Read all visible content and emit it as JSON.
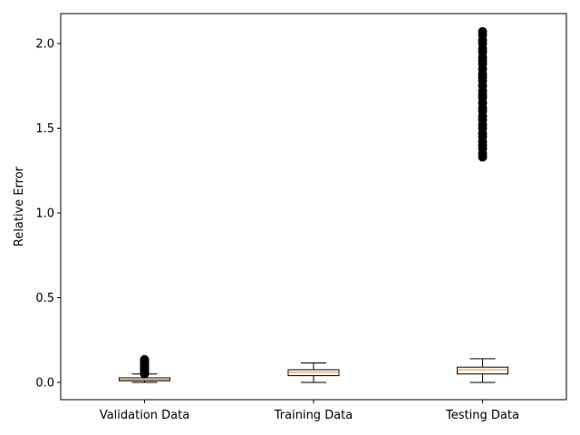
{
  "chart_data": {
    "type": "boxplot",
    "title": "",
    "xlabel": "",
    "ylabel": "Relative Error",
    "ylim": [
      -0.1,
      2.18
    ],
    "yticks": [
      0.0,
      0.5,
      1.0,
      1.5,
      2.0
    ],
    "ytick_labels": [
      "0.0",
      "0.5",
      "1.0",
      "1.5",
      "2.0"
    ],
    "grid": false,
    "colors": {
      "box": "#000000",
      "median": "#ff7f0e",
      "flier": "#000000"
    },
    "categories": [
      "Validation Data",
      "Training Data",
      "Testing Data"
    ],
    "boxes": [
      {
        "category": "Validation Data",
        "whisker_low": 0.0,
        "q1": 0.01,
        "median": 0.017,
        "q3": 0.027,
        "whisker_high": 0.05,
        "fliers": [
          0.05,
          0.055,
          0.06,
          0.065,
          0.07,
          0.075,
          0.08,
          0.085,
          0.09,
          0.095,
          0.1,
          0.105,
          0.11,
          0.115,
          0.12,
          0.125,
          0.13,
          0.135
        ]
      },
      {
        "category": "Training Data",
        "whisker_low": 0.0,
        "q1": 0.04,
        "median": 0.06,
        "q3": 0.075,
        "whisker_high": 0.115,
        "fliers": []
      },
      {
        "category": "Testing Data",
        "whisker_low": 0.0,
        "q1": 0.05,
        "median": 0.075,
        "q3": 0.09,
        "whisker_high": 0.14,
        "fliers": [
          1.33,
          1.35,
          1.38,
          1.4,
          1.42,
          1.45,
          1.47,
          1.5,
          1.52,
          1.55,
          1.57,
          1.6,
          1.62,
          1.65,
          1.68,
          1.7,
          1.72,
          1.75,
          1.78,
          1.8,
          1.82,
          1.85,
          1.88,
          1.9,
          1.92,
          1.95,
          1.97,
          2.0,
          2.02,
          2.05,
          2.07
        ]
      }
    ]
  }
}
